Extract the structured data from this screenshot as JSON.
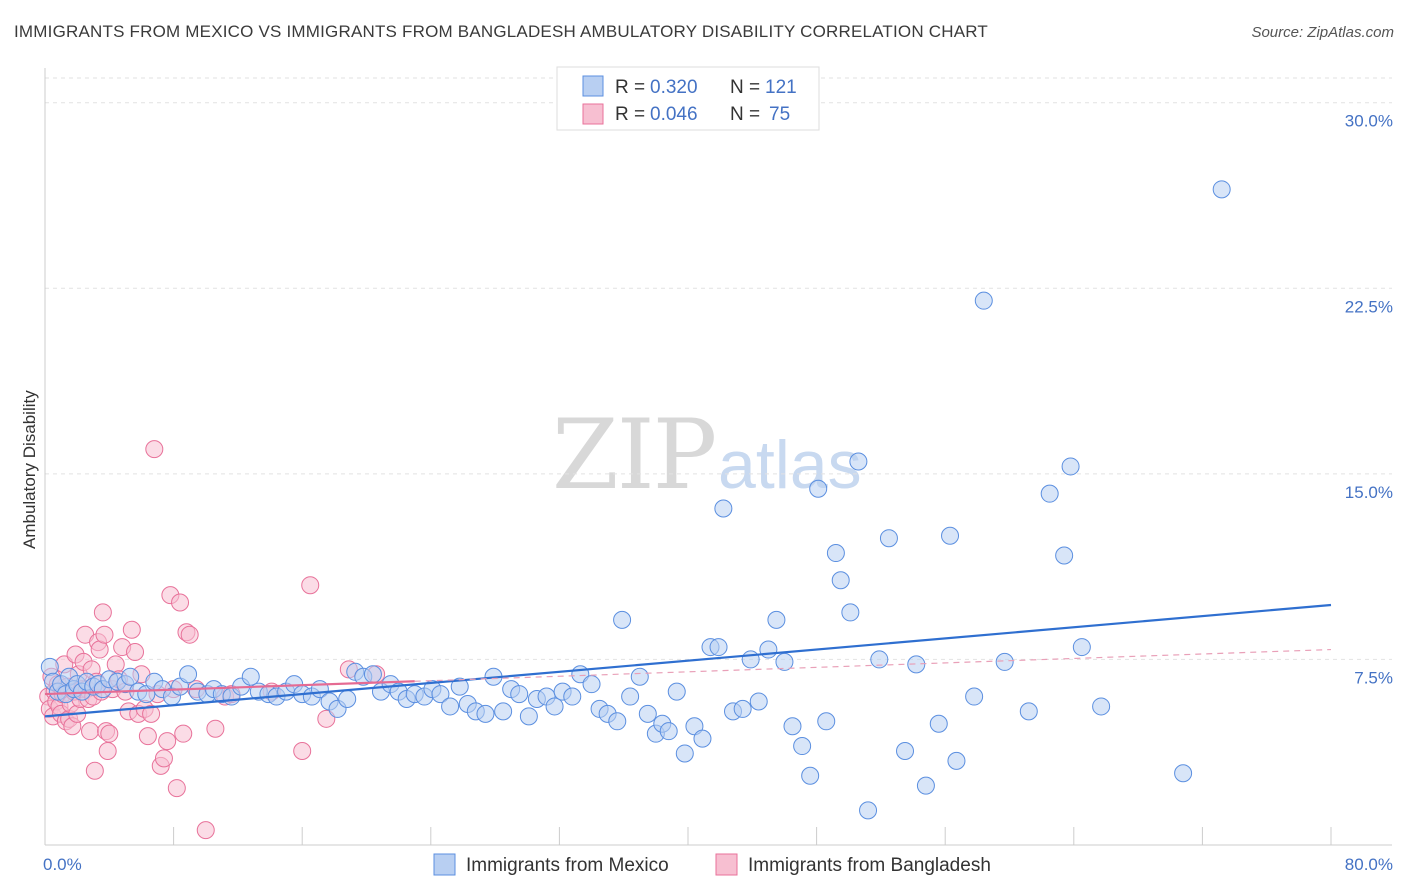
{
  "title": "IMMIGRANTS FROM MEXICO VS IMMIGRANTS FROM BANGLADESH AMBULATORY DISABILITY CORRELATION CHART",
  "source": "Source: ZipAtlas.com",
  "watermark": {
    "part1": "ZIP",
    "part2": "atlas"
  },
  "colors": {
    "mexico": "#5b8fe0",
    "mexico_fill": "#b8cff2",
    "bangladesh": "#e8729a",
    "bangladesh_fill": "#f7bfd1",
    "accent": "#4472c4"
  },
  "chart_data": {
    "type": "scatter",
    "title": "IMMIGRANTS FROM MEXICO VS IMMIGRANTS FROM BANGLADESH AMBULATORY DISABILITY CORRELATION CHART",
    "xlabel": "",
    "ylabel": "Ambulatory Disability",
    "xlim": [
      0,
      80
    ],
    "ylim": [
      0,
      31
    ],
    "x_tick_labels": [
      "0.0%",
      "80.0%"
    ],
    "y_ticks": [
      7.5,
      15.0,
      22.5,
      30.0
    ],
    "y_tick_labels": [
      "7.5%",
      "15.0%",
      "22.5%",
      "30.0%"
    ],
    "legend": {
      "r_label": "R =",
      "n_label": "N =",
      "rows": [
        {
          "r": "0.320",
          "n": "121"
        },
        {
          "r": "0.046",
          "n": "75"
        }
      ]
    },
    "series": [
      {
        "name": "Immigrants from Mexico",
        "trend": {
          "x": [
            0,
            80
          ],
          "y": [
            5.2,
            9.7
          ],
          "style": "solid"
        },
        "points": [
          [
            0.3,
            7.2
          ],
          [
            0.5,
            6.6
          ],
          [
            0.8,
            6.2
          ],
          [
            1.0,
            6.5
          ],
          [
            1.3,
            6.1
          ],
          [
            1.5,
            6.8
          ],
          [
            1.8,
            6.3
          ],
          [
            2.0,
            6.5
          ],
          [
            2.3,
            6.2
          ],
          [
            2.6,
            6.6
          ],
          [
            3.0,
            6.4
          ],
          [
            3.3,
            6.5
          ],
          [
            3.6,
            6.3
          ],
          [
            4.0,
            6.7
          ],
          [
            4.5,
            6.6
          ],
          [
            5.0,
            6.5
          ],
          [
            5.3,
            6.8
          ],
          [
            5.8,
            6.2
          ],
          [
            6.3,
            6.1
          ],
          [
            6.8,
            6.6
          ],
          [
            7.3,
            6.3
          ],
          [
            7.9,
            6.0
          ],
          [
            8.4,
            6.4
          ],
          [
            8.9,
            6.9
          ],
          [
            9.5,
            6.2
          ],
          [
            10.1,
            6.1
          ],
          [
            10.5,
            6.3
          ],
          [
            11.0,
            6.1
          ],
          [
            11.6,
            6.0
          ],
          [
            12.2,
            6.4
          ],
          [
            12.8,
            6.8
          ],
          [
            13.3,
            6.2
          ],
          [
            13.9,
            6.1
          ],
          [
            14.4,
            6.0
          ],
          [
            15.0,
            6.2
          ],
          [
            15.5,
            6.5
          ],
          [
            16.0,
            6.1
          ],
          [
            16.6,
            6.0
          ],
          [
            17.1,
            6.3
          ],
          [
            17.7,
            5.8
          ],
          [
            18.2,
            5.5
          ],
          [
            18.8,
            5.9
          ],
          [
            19.3,
            7.0
          ],
          [
            19.8,
            6.8
          ],
          [
            20.4,
            6.9
          ],
          [
            20.9,
            6.2
          ],
          [
            21.5,
            6.5
          ],
          [
            22.0,
            6.2
          ],
          [
            22.5,
            5.9
          ],
          [
            23.0,
            6.1
          ],
          [
            23.6,
            6.0
          ],
          [
            24.1,
            6.3
          ],
          [
            24.6,
            6.1
          ],
          [
            25.2,
            5.6
          ],
          [
            25.8,
            6.4
          ],
          [
            26.3,
            5.7
          ],
          [
            26.8,
            5.4
          ],
          [
            27.4,
            5.3
          ],
          [
            27.9,
            6.8
          ],
          [
            28.5,
            5.4
          ],
          [
            29.0,
            6.3
          ],
          [
            29.5,
            6.1
          ],
          [
            30.1,
            5.2
          ],
          [
            30.6,
            5.9
          ],
          [
            31.2,
            6.0
          ],
          [
            31.7,
            5.6
          ],
          [
            32.2,
            6.2
          ],
          [
            32.8,
            6.0
          ],
          [
            33.3,
            6.9
          ],
          [
            34.0,
            6.5
          ],
          [
            34.5,
            5.5
          ],
          [
            35.0,
            5.3
          ],
          [
            35.6,
            5.0
          ],
          [
            35.9,
            9.1
          ],
          [
            36.4,
            6.0
          ],
          [
            37.0,
            6.8
          ],
          [
            37.5,
            5.3
          ],
          [
            38.0,
            4.5
          ],
          [
            38.4,
            4.9
          ],
          [
            38.8,
            4.6
          ],
          [
            39.3,
            6.2
          ],
          [
            39.8,
            3.7
          ],
          [
            40.4,
            4.8
          ],
          [
            40.9,
            4.3
          ],
          [
            41.4,
            8.0
          ],
          [
            41.9,
            8.0
          ],
          [
            42.2,
            13.6
          ],
          [
            42.8,
            5.4
          ],
          [
            43.4,
            5.5
          ],
          [
            43.9,
            7.5
          ],
          [
            44.4,
            5.8
          ],
          [
            45.0,
            7.9
          ],
          [
            45.5,
            9.1
          ],
          [
            46.0,
            7.4
          ],
          [
            46.5,
            4.8
          ],
          [
            47.1,
            4.0
          ],
          [
            47.6,
            2.8
          ],
          [
            48.1,
            14.4
          ],
          [
            48.6,
            5.0
          ],
          [
            49.2,
            11.8
          ],
          [
            49.5,
            10.7
          ],
          [
            50.1,
            9.4
          ],
          [
            50.6,
            15.5
          ],
          [
            51.2,
            1.4
          ],
          [
            51.9,
            7.5
          ],
          [
            52.5,
            12.4
          ],
          [
            53.5,
            3.8
          ],
          [
            54.2,
            7.3
          ],
          [
            54.8,
            2.4
          ],
          [
            55.6,
            4.9
          ],
          [
            56.3,
            12.5
          ],
          [
            56.7,
            3.4
          ],
          [
            57.8,
            6.0
          ],
          [
            58.4,
            22.0
          ],
          [
            59.7,
            7.4
          ],
          [
            61.2,
            5.4
          ],
          [
            62.5,
            14.2
          ],
          [
            63.4,
            11.7
          ],
          [
            63.8,
            15.3
          ],
          [
            64.5,
            8.0
          ],
          [
            65.7,
            5.6
          ],
          [
            70.8,
            2.9
          ],
          [
            73.2,
            26.5
          ]
        ]
      },
      {
        "name": "Immigrants from Bangladesh",
        "trend": {
          "x": [
            0,
            80
          ],
          "y": [
            6.1,
            7.9
          ],
          "style": "dashed"
        },
        "points": [
          [
            0.2,
            6.0
          ],
          [
            0.3,
            5.5
          ],
          [
            0.4,
            6.8
          ],
          [
            0.5,
            5.2
          ],
          [
            0.6,
            6.2
          ],
          [
            0.7,
            5.8
          ],
          [
            0.8,
            6.5
          ],
          [
            0.9,
            5.6
          ],
          [
            1.0,
            5.3
          ],
          [
            1.1,
            6.1
          ],
          [
            1.2,
            7.3
          ],
          [
            1.3,
            5.0
          ],
          [
            1.4,
            6.4
          ],
          [
            1.5,
            5.1
          ],
          [
            1.6,
            5.7
          ],
          [
            1.7,
            4.8
          ],
          [
            1.8,
            6.2
          ],
          [
            1.9,
            7.7
          ],
          [
            2.0,
            5.3
          ],
          [
            2.1,
            6.9
          ],
          [
            2.2,
            5.9
          ],
          [
            2.3,
            6.3
          ],
          [
            2.4,
            7.4
          ],
          [
            2.5,
            8.5
          ],
          [
            2.6,
            6.3
          ],
          [
            2.7,
            5.9
          ],
          [
            2.8,
            4.6
          ],
          [
            2.9,
            7.1
          ],
          [
            3.0,
            6.0
          ],
          [
            3.1,
            3.0
          ],
          [
            3.2,
            6.6
          ],
          [
            3.3,
            8.2
          ],
          [
            3.4,
            7.9
          ],
          [
            3.5,
            6.2
          ],
          [
            3.6,
            9.4
          ],
          [
            3.7,
            8.5
          ],
          [
            3.8,
            4.6
          ],
          [
            3.9,
            3.8
          ],
          [
            4.0,
            4.5
          ],
          [
            4.2,
            6.3
          ],
          [
            4.4,
            7.3
          ],
          [
            4.6,
            6.7
          ],
          [
            4.8,
            8.0
          ],
          [
            5.0,
            6.2
          ],
          [
            5.2,
            5.4
          ],
          [
            5.4,
            8.7
          ],
          [
            5.6,
            7.8
          ],
          [
            5.8,
            5.3
          ],
          [
            6.0,
            6.9
          ],
          [
            6.2,
            5.5
          ],
          [
            6.4,
            4.4
          ],
          [
            6.6,
            5.3
          ],
          [
            6.8,
            16.0
          ],
          [
            7.0,
            6.1
          ],
          [
            7.2,
            3.2
          ],
          [
            7.4,
            3.5
          ],
          [
            7.6,
            4.2
          ],
          [
            7.8,
            10.1
          ],
          [
            8.0,
            6.3
          ],
          [
            8.2,
            2.3
          ],
          [
            8.4,
            9.8
          ],
          [
            8.6,
            4.5
          ],
          [
            8.8,
            8.6
          ],
          [
            9.0,
            8.5
          ],
          [
            9.4,
            6.3
          ],
          [
            10.0,
            0.6
          ],
          [
            10.6,
            4.7
          ],
          [
            11.2,
            6.0
          ],
          [
            11.6,
            6.1
          ],
          [
            14.1,
            6.2
          ],
          [
            16.0,
            3.8
          ],
          [
            16.5,
            10.5
          ],
          [
            17.5,
            5.1
          ],
          [
            18.9,
            7.1
          ],
          [
            20.6,
            6.9
          ]
        ]
      }
    ]
  },
  "bottom_legend": [
    "Immigrants from Mexico",
    "Immigrants from Bangladesh"
  ]
}
